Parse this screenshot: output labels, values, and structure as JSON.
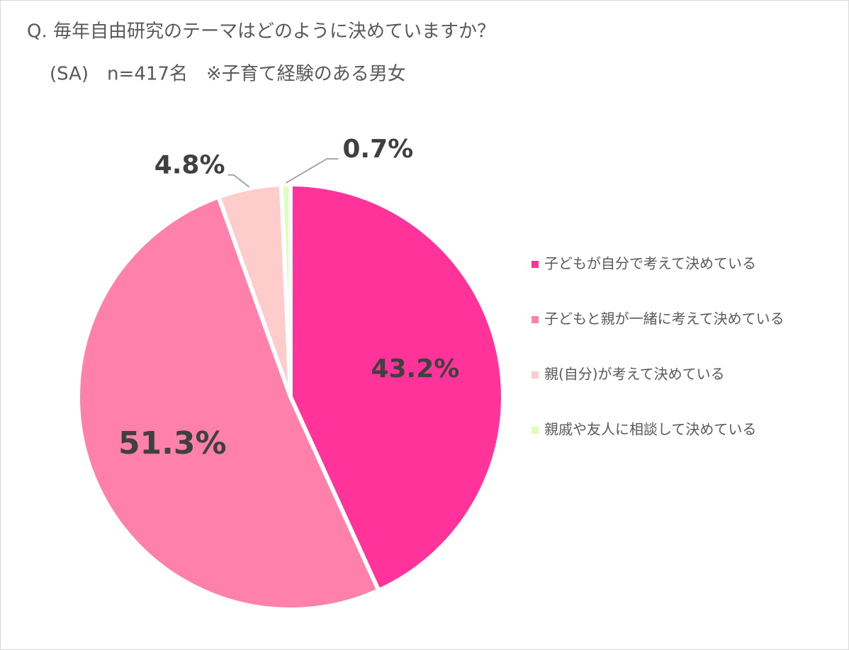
{
  "chart_data": {
    "type": "pie",
    "title": "Q. 毎年自由研究のテーマはどのように決めていますか？",
    "subtitle": "(SA)　n=417名　※子育て経験のある男女",
    "categories": [
      "子どもが自分で考えて決めている",
      "子どもと親が一緒に考えて決めている",
      "親(自分)が考えて決めている",
      "親戚や友人に相談して決めている"
    ],
    "values": [
      43.2,
      51.3,
      4.8,
      0.7
    ],
    "value_labels": [
      "43.2%",
      "51.3%",
      "4.8%",
      "0.7%"
    ],
    "colors": [
      "#ff3399",
      "#ff80aa",
      "#ffcccc",
      "#ddffbb"
    ],
    "legend": "right"
  }
}
